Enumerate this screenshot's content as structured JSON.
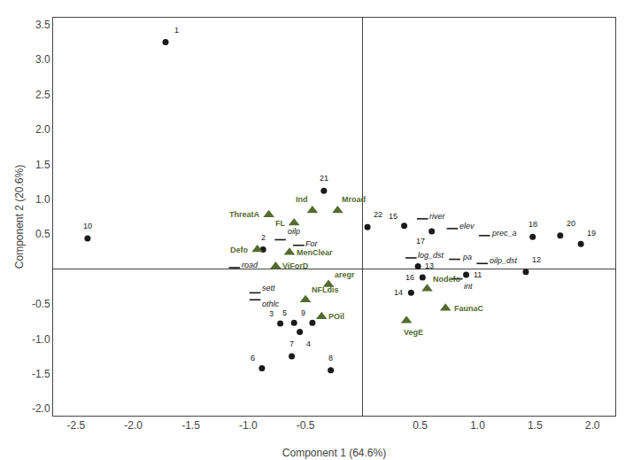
{
  "chart_data": {
    "type": "scatter",
    "xlabel": "Component 1 (64.6%)",
    "ylabel": "Component 2 (20.6%)",
    "xlim": [
      -2.7,
      2.2
    ],
    "ylim": [
      -2.1,
      3.6
    ],
    "xticks": [
      -2.5,
      {
        "value": -2,
        "label": "-2.0"
      },
      -1.5,
      {
        "value": -1,
        "label": "-1.0"
      },
      -0.5,
      0.5,
      {
        "value": 1,
        "label": "1.0"
      },
      1.5,
      {
        "value": 2,
        "label": "2.0"
      }
    ],
    "yticks": [
      {
        "value": -2,
        "label": "-2.0"
      },
      -1.5,
      {
        "value": -1,
        "label": "-1.0"
      },
      -0.5,
      0.5,
      {
        "value": 1,
        "label": "1.0"
      },
      1.5,
      {
        "value": 2,
        "label": "2.0"
      },
      2.5,
      {
        "value": 3,
        "label": "3.0"
      },
      3.5
    ],
    "grid": false,
    "series": [
      {
        "marker": "circle",
        "color": "#1a1a1a",
        "x": [
          -1.72,
          -0.87,
          -0.72,
          -0.55,
          -0.6,
          -0.88,
          -0.62,
          -0.28,
          -0.44,
          -2.4,
          0.9,
          1.42,
          0.48,
          0.42,
          0.36,
          0.52,
          0.6,
          1.48,
          1.9,
          1.72,
          -0.34,
          0.04
        ],
        "y": [
          3.25,
          0.28,
          -0.78,
          -0.9,
          -0.77,
          -1.42,
          -1.25,
          -1.45,
          -0.77,
          0.44,
          -0.08,
          -0.04,
          0.04,
          -0.34,
          0.62,
          -0.12,
          0.54,
          0.46,
          0.36,
          0.48,
          1.12,
          0.6
        ],
        "labels": [
          "1",
          "2",
          "3",
          "4",
          "5",
          "6",
          "7",
          "8",
          "9",
          "10",
          "11",
          "12",
          "13",
          "14",
          "15",
          "16",
          "17",
          "18",
          "19",
          "20",
          "21",
          "22"
        ]
      },
      {
        "marker": "triangle-up",
        "color": "#556B2F",
        "x": [
          -0.82,
          -0.44,
          -0.22,
          -0.6,
          -0.92,
          -0.64,
          -0.76,
          -0.3,
          -0.5,
          -0.36,
          0.56,
          0.72,
          0.38
        ],
        "y": [
          0.78,
          0.84,
          0.84,
          0.66,
          0.28,
          0.24,
          0.04,
          -0.22,
          -0.44,
          -0.68,
          -0.28,
          -0.56,
          -0.74
        ],
        "labels": [
          "ThreatA",
          "Ind",
          "Mroad",
          "FL",
          "Defo",
          "MenClear",
          "ViForD",
          "aregr",
          "NFLdis",
          "POil",
          "Nodefo",
          "FaunaC",
          "VegE"
        ]
      },
      {
        "marker": "dash",
        "color": "#1a1a1a",
        "x": [
          0.52,
          0.78,
          1.06,
          0.42,
          0.8,
          1.04,
          0.82,
          -0.72,
          -0.56,
          -1.12,
          -0.94,
          -0.94
        ],
        "y": [
          0.72,
          0.58,
          0.48,
          0.16,
          0.14,
          0.08,
          -0.14,
          0.42,
          0.34,
          0.02,
          -0.34,
          -0.44
        ],
        "labels": [
          "river",
          "elev",
          "prec_a",
          "log_dst",
          "pa",
          "oilp_dst",
          "int",
          "oilp",
          "For",
          "road",
          "sett",
          "othlc"
        ]
      }
    ]
  }
}
